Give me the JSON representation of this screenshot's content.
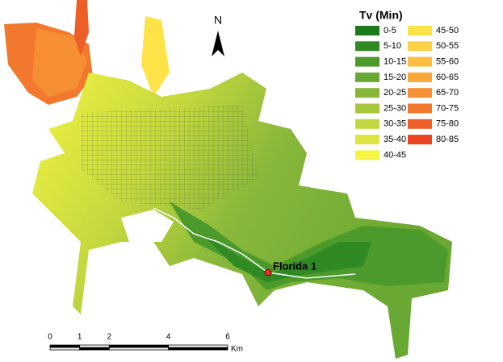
{
  "legend": {
    "title": "Tv (Min)",
    "items": [
      {
        "label": "0-5",
        "color": "#1c7a1c"
      },
      {
        "label": "5-10",
        "color": "#2f8a23"
      },
      {
        "label": "10-15",
        "color": "#4b9a2b"
      },
      {
        "label": "15-20",
        "color": "#69a832"
      },
      {
        "label": "20-25",
        "color": "#88b73a"
      },
      {
        "label": "25-30",
        "color": "#a6c73c"
      },
      {
        "label": "30-35",
        "color": "#c3d73e"
      },
      {
        "label": "35-40",
        "color": "#dde641"
      },
      {
        "label": "40-45",
        "color": "#f4f443"
      },
      {
        "label": "45-50",
        "color": "#fde348"
      },
      {
        "label": "50-55",
        "color": "#fcd145"
      },
      {
        "label": "55-60",
        "color": "#fbbd3f"
      },
      {
        "label": "60-65",
        "color": "#f9a83a"
      },
      {
        "label": "65-70",
        "color": "#f69034"
      },
      {
        "label": "70-75",
        "color": "#f2782e"
      },
      {
        "label": "75-80",
        "color": "#ee5f28"
      },
      {
        "label": "80-85",
        "color": "#ea4422"
      }
    ]
  },
  "north_arrow": {
    "label": "N"
  },
  "marker": {
    "label": "Florida 1"
  },
  "scale_bar": {
    "ticks": [
      0,
      1,
      2,
      4,
      6
    ],
    "unit": "Km"
  }
}
